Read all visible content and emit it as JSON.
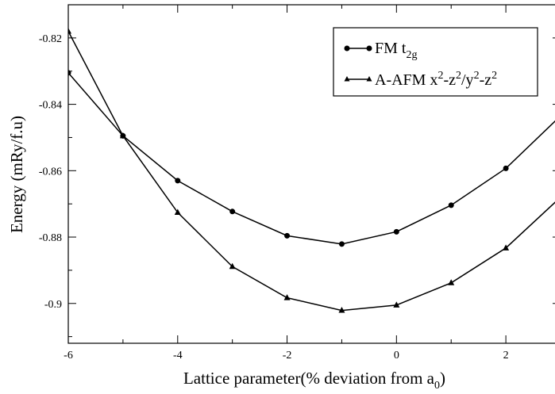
{
  "chart_data": {
    "type": "line",
    "xlabel": "Lattice parameter(% deviation from a",
    "xlabel_sub": "0",
    "xlabel_close": ")",
    "ylabel": "Energy (mRy/f.u)",
    "xlim": [
      -6,
      3
    ],
    "ylim": [
      -0.912,
      -0.81
    ],
    "x_ticks": [
      -6,
      -4,
      -2,
      0,
      2
    ],
    "x_tick_labels": [
      "-6",
      "-4",
      "-2",
      "0",
      "2"
    ],
    "y_ticks": [
      -0.82,
      -0.84,
      -0.86,
      -0.88,
      -0.9
    ],
    "y_tick_labels": [
      "-0.82",
      "-0.84",
      "-0.86",
      "-0.88",
      "-0.9"
    ],
    "legend_position": "top-right",
    "series": [
      {
        "name": "FM t2g",
        "legend": {
          "main": "FM t",
          "sub": "2g"
        },
        "marker": "circle",
        "color": "#000000",
        "x": [
          -6,
          -5,
          -4,
          -3,
          -2,
          -1,
          0,
          1,
          2,
          3
        ],
        "values": [
          -0.8305,
          -0.8495,
          -0.863,
          -0.8723,
          -0.8796,
          -0.8821,
          -0.8784,
          -0.8704,
          -0.8593,
          -0.8435
        ]
      },
      {
        "name": "A-AFM x2-z2/y2-z2",
        "legend": {
          "p1": "A-AFM x",
          "s1": "2",
          "p2": "-z",
          "s2": "2",
          "p3": "/y",
          "s3": "2",
          "p4": "-z",
          "s4": "2"
        },
        "marker": "triangle",
        "color": "#000000",
        "x": [
          -6,
          -5,
          -4,
          -3,
          -2,
          -1,
          0,
          1,
          2,
          3
        ],
        "values": [
          -0.818,
          -0.8495,
          -0.8726,
          -0.8889,
          -0.8983,
          -0.9021,
          -0.9005,
          -0.8938,
          -0.8833,
          -0.868
        ]
      }
    ]
  }
}
